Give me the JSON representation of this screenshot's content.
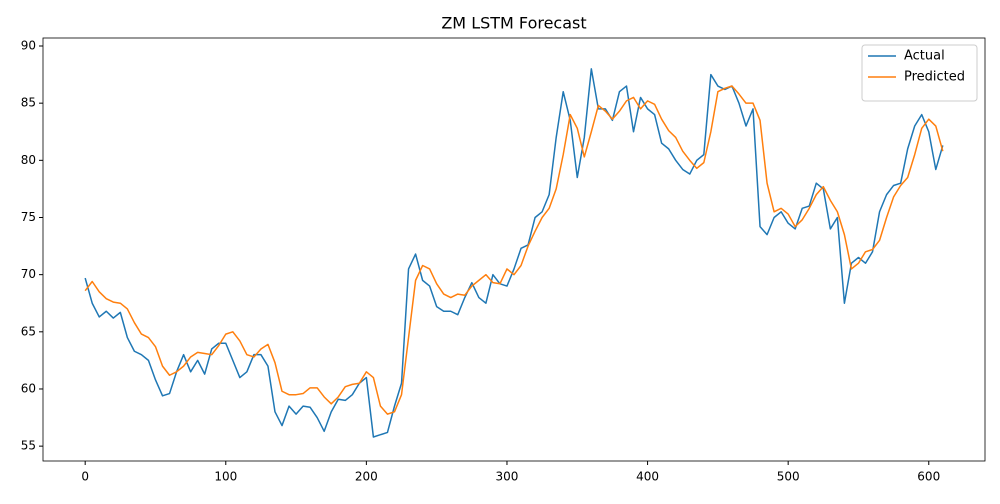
{
  "chart_data": {
    "type": "line",
    "title": "ZM LSTM Forecast",
    "x": [
      0,
      5,
      10,
      15,
      20,
      25,
      30,
      35,
      40,
      45,
      50,
      55,
      60,
      65,
      70,
      75,
      80,
      85,
      90,
      95,
      100,
      105,
      110,
      115,
      120,
      125,
      130,
      135,
      140,
      145,
      150,
      155,
      160,
      165,
      170,
      175,
      180,
      185,
      190,
      195,
      200,
      205,
      210,
      215,
      220,
      225,
      230,
      235,
      240,
      245,
      250,
      255,
      260,
      265,
      270,
      275,
      280,
      285,
      290,
      295,
      300,
      305,
      310,
      315,
      320,
      325,
      330,
      335,
      340,
      345,
      350,
      355,
      360,
      365,
      370,
      375,
      380,
      385,
      390,
      395,
      400,
      405,
      410,
      415,
      420,
      425,
      430,
      435,
      440,
      445,
      450,
      455,
      460,
      465,
      470,
      475,
      480,
      485,
      490,
      495,
      500,
      505,
      510,
      515,
      520,
      525,
      530,
      535,
      540,
      545,
      550,
      555,
      560,
      565,
      570,
      575,
      580,
      585,
      590,
      595,
      600,
      605,
      610
    ],
    "series": [
      {
        "name": "Actual",
        "color": "#1f77b4",
        "values": [
          69.7,
          67.5,
          66.3,
          66.8,
          66.2,
          66.7,
          64.5,
          63.3,
          63.0,
          62.5,
          60.8,
          59.4,
          59.6,
          61.5,
          63.0,
          61.5,
          62.5,
          61.3,
          63.5,
          64.0,
          64.0,
          62.5,
          61.0,
          61.5,
          63.0,
          63.0,
          62.0,
          58.0,
          56.8,
          58.5,
          57.8,
          58.5,
          58.4,
          57.5,
          56.3,
          58.0,
          59.1,
          59.0,
          59.5,
          60.5,
          61.0,
          55.8,
          56.0,
          56.2,
          58.5,
          60.5,
          70.5,
          71.8,
          69.5,
          69.0,
          67.2,
          66.8,
          66.8,
          66.5,
          68.0,
          69.3,
          68.0,
          67.5,
          70.0,
          69.2,
          69.0,
          70.5,
          72.3,
          72.6,
          75.0,
          75.5,
          77.0,
          82.0,
          86.0,
          83.5,
          78.5,
          82.0,
          88.0,
          84.5,
          84.5,
          83.5,
          86.0,
          86.5,
          82.5,
          85.5,
          84.5,
          84.0,
          81.5,
          81.0,
          80.0,
          79.2,
          78.8,
          80.0,
          80.5,
          87.5,
          86.5,
          86.2,
          86.5,
          85.0,
          83.0,
          84.5,
          74.2,
          73.5,
          75.0,
          75.5,
          74.5,
          74.0,
          75.8,
          76.0,
          78.0,
          77.5,
          74.0,
          75.0,
          67.5,
          71.0,
          71.5,
          71.0,
          72.0,
          75.5,
          77.0,
          77.8,
          78.0,
          81.0,
          83.0,
          84.0,
          82.5,
          79.2,
          81.3
        ]
      },
      {
        "name": "Predicted",
        "color": "#ff7f0e",
        "values": [
          68.6,
          69.4,
          68.5,
          67.9,
          67.6,
          67.5,
          67.0,
          65.8,
          64.8,
          64.5,
          63.7,
          62.0,
          61.2,
          61.5,
          62.0,
          62.8,
          63.2,
          63.1,
          63.0,
          63.8,
          64.8,
          65.0,
          64.2,
          63.0,
          62.8,
          63.5,
          63.9,
          62.3,
          59.8,
          59.5,
          59.5,
          59.6,
          60.1,
          60.1,
          59.3,
          58.7,
          59.3,
          60.2,
          60.4,
          60.5,
          61.5,
          61.0,
          58.5,
          57.8,
          58.0,
          59.5,
          64.5,
          69.5,
          70.8,
          70.5,
          69.2,
          68.3,
          68.0,
          68.3,
          68.2,
          69.0,
          69.5,
          70.0,
          69.3,
          69.2,
          70.5,
          70.0,
          70.8,
          72.5,
          73.8,
          75.0,
          75.8,
          77.5,
          80.5,
          84.0,
          82.8,
          80.3,
          82.5,
          84.8,
          84.3,
          83.6,
          84.3,
          85.2,
          85.5,
          84.5,
          85.2,
          84.9,
          83.6,
          82.6,
          82.0,
          80.8,
          80.0,
          79.3,
          79.8,
          82.5,
          86.0,
          86.3,
          86.5,
          85.8,
          85.0,
          85.0,
          83.5,
          78.0,
          75.5,
          75.8,
          75.3,
          74.2,
          74.8,
          75.8,
          77.0,
          77.7,
          76.5,
          75.5,
          73.5,
          70.5,
          71.0,
          72.0,
          72.2,
          73.0,
          75.0,
          76.8,
          77.8,
          78.5,
          80.5,
          82.8,
          83.6,
          83.0,
          80.8
        ]
      }
    ],
    "xlim": [
      -30,
      640
    ],
    "ylim": [
      53.7,
      90.7
    ],
    "xticks": [
      0,
      100,
      200,
      300,
      400,
      500,
      600
    ],
    "yticks": [
      55,
      60,
      65,
      70,
      75,
      80,
      85,
      90
    ],
    "legend": "upper right"
  }
}
